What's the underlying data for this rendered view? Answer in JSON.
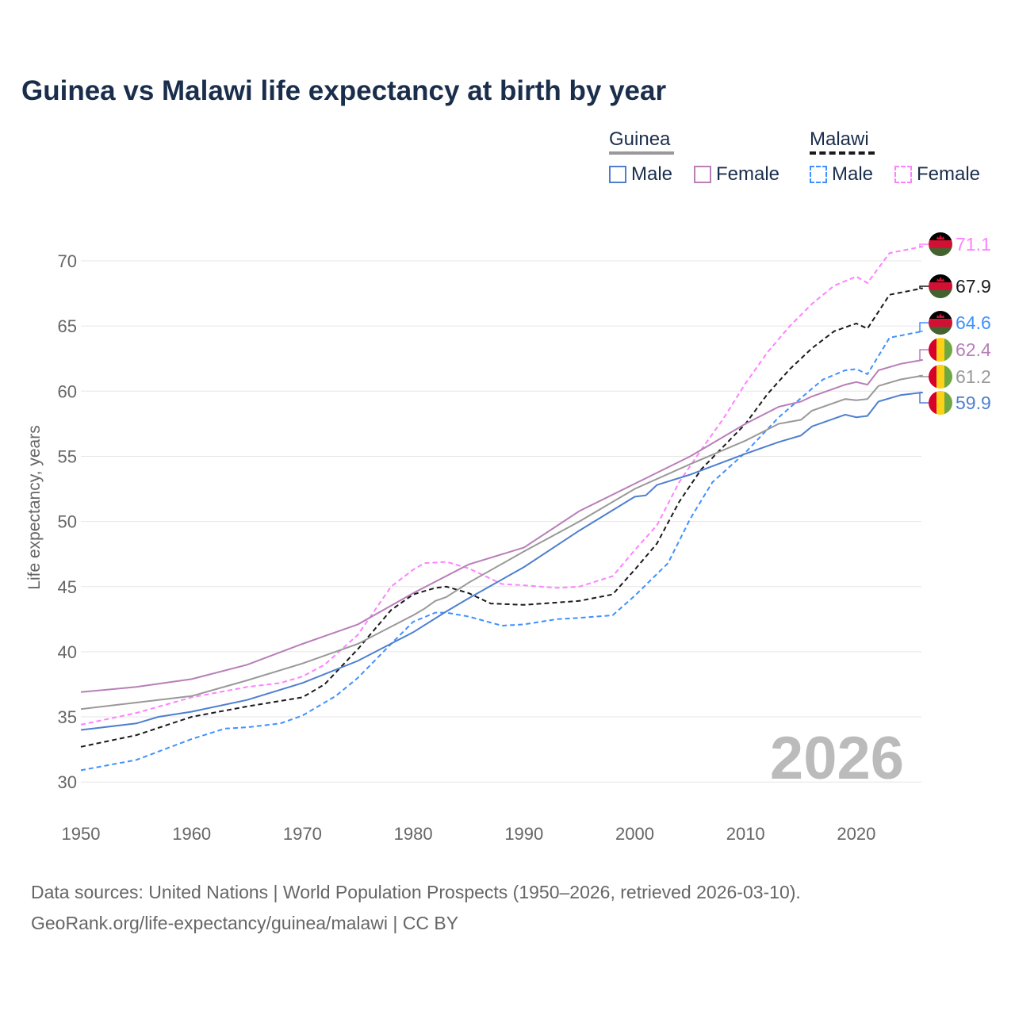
{
  "title": "Guinea vs Malawi life expectancy at birth by year",
  "legend": {
    "groups": [
      {
        "name": "Guinea",
        "items": [
          "Male",
          "Female"
        ]
      },
      {
        "name": "Malawi",
        "items": [
          "Male",
          "Female"
        ]
      }
    ]
  },
  "watermark": "2026",
  "footer": {
    "line1": "Data sources: United Nations | World Population Prospects (1950–2026, retrieved 2026-03-10).",
    "line2": "GeoRank.org/life-expectancy/guinea/malawi | CC BY"
  },
  "chart_data": {
    "type": "line",
    "title": "Guinea vs Malawi life expectancy at birth by year",
    "xlabel": "",
    "ylabel": "Life expectancy, years",
    "xlim": [
      1950,
      2026
    ],
    "ylim": [
      30,
      72
    ],
    "xticks": [
      1950,
      1960,
      1970,
      1980,
      1990,
      2000,
      2010,
      2020
    ],
    "yticks": [
      30,
      35,
      40,
      45,
      50,
      55,
      60,
      65,
      70
    ],
    "grid": true,
    "series": [
      {
        "name": "Malawi Female",
        "country": "Malawi",
        "color": "#ff80ff",
        "dash": true,
        "end_label": "71.1",
        "points": [
          [
            1950,
            34.4
          ],
          [
            1955,
            35.3
          ],
          [
            1960,
            36.5
          ],
          [
            1965,
            37.3
          ],
          [
            1968,
            37.6
          ],
          [
            1970,
            38.1
          ],
          [
            1972,
            39.0
          ],
          [
            1975,
            41.3
          ],
          [
            1978,
            45.0
          ],
          [
            1980,
            46.3
          ],
          [
            1981,
            46.8
          ],
          [
            1983,
            46.9
          ],
          [
            1985,
            46.4
          ],
          [
            1988,
            45.2
          ],
          [
            1990,
            45.1
          ],
          [
            1993,
            44.9
          ],
          [
            1995,
            45.0
          ],
          [
            1998,
            45.8
          ],
          [
            2000,
            47.8
          ],
          [
            2002,
            49.7
          ],
          [
            2004,
            53.0
          ],
          [
            2006,
            55.5
          ],
          [
            2008,
            57.9
          ],
          [
            2010,
            60.6
          ],
          [
            2012,
            63.0
          ],
          [
            2014,
            65.0
          ],
          [
            2016,
            66.7
          ],
          [
            2018,
            68.1
          ],
          [
            2020,
            68.8
          ],
          [
            2021,
            68.3
          ],
          [
            2023,
            70.6
          ],
          [
            2026,
            71.1
          ]
        ]
      },
      {
        "name": "Malawi",
        "country": "Malawi",
        "color": "#1a1a1a",
        "dash": true,
        "end_label": "67.9",
        "points": [
          [
            1950,
            32.7
          ],
          [
            1955,
            33.6
          ],
          [
            1960,
            35.0
          ],
          [
            1965,
            35.8
          ],
          [
            1970,
            36.5
          ],
          [
            1972,
            37.5
          ],
          [
            1975,
            40.2
          ],
          [
            1978,
            43.2
          ],
          [
            1980,
            44.4
          ],
          [
            1982,
            44.9
          ],
          [
            1983,
            45.0
          ],
          [
            1985,
            44.5
          ],
          [
            1987,
            43.7
          ],
          [
            1990,
            43.6
          ],
          [
            1995,
            43.9
          ],
          [
            1998,
            44.4
          ],
          [
            2000,
            46.3
          ],
          [
            2002,
            48.3
          ],
          [
            2004,
            51.5
          ],
          [
            2006,
            54.0
          ],
          [
            2010,
            57.5
          ],
          [
            2012,
            59.8
          ],
          [
            2014,
            61.7
          ],
          [
            2016,
            63.3
          ],
          [
            2018,
            64.6
          ],
          [
            2020,
            65.2
          ],
          [
            2021,
            64.8
          ],
          [
            2023,
            67.4
          ],
          [
            2026,
            67.9
          ]
        ]
      },
      {
        "name": "Malawi Male",
        "country": "Malawi",
        "color": "#4090ff",
        "dash": true,
        "end_label": "64.6",
        "points": [
          [
            1950,
            30.9
          ],
          [
            1955,
            31.7
          ],
          [
            1960,
            33.3
          ],
          [
            1963,
            34.1
          ],
          [
            1965,
            34.2
          ],
          [
            1968,
            34.5
          ],
          [
            1970,
            35.1
          ],
          [
            1973,
            36.6
          ],
          [
            1975,
            38.0
          ],
          [
            1978,
            40.6
          ],
          [
            1980,
            42.3
          ],
          [
            1982,
            43.0
          ],
          [
            1983,
            43.0
          ],
          [
            1985,
            42.7
          ],
          [
            1988,
            42.0
          ],
          [
            1990,
            42.1
          ],
          [
            1993,
            42.5
          ],
          [
            1995,
            42.6
          ],
          [
            1998,
            42.8
          ],
          [
            2000,
            44.3
          ],
          [
            2003,
            46.8
          ],
          [
            2005,
            50.2
          ],
          [
            2007,
            53.0
          ],
          [
            2010,
            55.3
          ],
          [
            2013,
            58.0
          ],
          [
            2016,
            60.2
          ],
          [
            2017,
            60.9
          ],
          [
            2019,
            61.6
          ],
          [
            2020,
            61.7
          ],
          [
            2021,
            61.3
          ],
          [
            2023,
            64.1
          ],
          [
            2026,
            64.6
          ]
        ]
      },
      {
        "name": "Guinea Female",
        "country": "Guinea",
        "color": "#b87fb8",
        "dash": false,
        "end_label": "62.4",
        "points": [
          [
            1950,
            36.9
          ],
          [
            1955,
            37.3
          ],
          [
            1960,
            37.9
          ],
          [
            1965,
            39.0
          ],
          [
            1970,
            40.6
          ],
          [
            1972,
            41.2
          ],
          [
            1975,
            42.1
          ],
          [
            1980,
            44.5
          ],
          [
            1985,
            46.7
          ],
          [
            1990,
            48.0
          ],
          [
            1995,
            50.8
          ],
          [
            2000,
            52.9
          ],
          [
            2005,
            55.0
          ],
          [
            2010,
            57.5
          ],
          [
            2013,
            58.8
          ],
          [
            2015,
            59.2
          ],
          [
            2016,
            59.6
          ],
          [
            2019,
            60.5
          ],
          [
            2020,
            60.7
          ],
          [
            2021,
            60.5
          ],
          [
            2022,
            61.6
          ],
          [
            2024,
            62.1
          ],
          [
            2026,
            62.4
          ]
        ]
      },
      {
        "name": "Guinea",
        "country": "Guinea",
        "color": "#999999",
        "dash": false,
        "end_label": "61.2",
        "points": [
          [
            1950,
            35.6
          ],
          [
            1955,
            36.1
          ],
          [
            1960,
            36.6
          ],
          [
            1965,
            37.8
          ],
          [
            1970,
            39.1
          ],
          [
            1975,
            40.6
          ],
          [
            1980,
            42.8
          ],
          [
            1981,
            43.3
          ],
          [
            1982,
            43.9
          ],
          [
            1983,
            44.2
          ],
          [
            1985,
            45.3
          ],
          [
            1990,
            47.7
          ],
          [
            1995,
            50.0
          ],
          [
            2000,
            52.5
          ],
          [
            2005,
            54.4
          ],
          [
            2010,
            56.2
          ],
          [
            2013,
            57.5
          ],
          [
            2015,
            57.8
          ],
          [
            2016,
            58.5
          ],
          [
            2019,
            59.4
          ],
          [
            2020,
            59.3
          ],
          [
            2021,
            59.4
          ],
          [
            2022,
            60.4
          ],
          [
            2024,
            60.9
          ],
          [
            2026,
            61.2
          ]
        ]
      },
      {
        "name": "Guinea Male",
        "country": "Guinea",
        "color": "#4e7fcf",
        "dash": false,
        "end_label": "59.9",
        "points": [
          [
            1950,
            34.0
          ],
          [
            1955,
            34.5
          ],
          [
            1957,
            35.0
          ],
          [
            1960,
            35.4
          ],
          [
            1965,
            36.3
          ],
          [
            1970,
            37.6
          ],
          [
            1975,
            39.3
          ],
          [
            1980,
            41.5
          ],
          [
            1983,
            43.1
          ],
          [
            1985,
            44.1
          ],
          [
            1990,
            46.5
          ],
          [
            1995,
            49.3
          ],
          [
            2000,
            51.9
          ],
          [
            2001,
            52.0
          ],
          [
            2002,
            52.8
          ],
          [
            2005,
            53.6
          ],
          [
            2010,
            55.2
          ],
          [
            2013,
            56.1
          ],
          [
            2015,
            56.6
          ],
          [
            2016,
            57.3
          ],
          [
            2019,
            58.2
          ],
          [
            2020,
            58.0
          ],
          [
            2021,
            58.1
          ],
          [
            2022,
            59.2
          ],
          [
            2024,
            59.7
          ],
          [
            2026,
            59.9
          ]
        ]
      }
    ]
  }
}
